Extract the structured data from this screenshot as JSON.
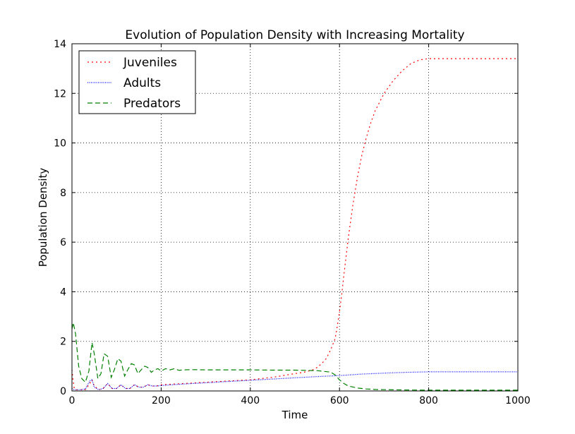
{
  "chart_data": {
    "type": "line",
    "title": "Evolution of Population Density with Increasing Mortality",
    "xlabel": "Time",
    "ylabel": "Population Density",
    "xlim": [
      0,
      1000
    ],
    "ylim": [
      0,
      14
    ],
    "xticks": [
      0,
      200,
      400,
      600,
      800,
      1000
    ],
    "yticks": [
      0,
      2,
      4,
      6,
      8,
      10,
      12,
      14
    ],
    "grid": true,
    "legend_position": "top-left",
    "series": [
      {
        "name": "Juveniles",
        "color": "#ff0000",
        "style": "dotted",
        "x": [
          0,
          2,
          5,
          10,
          15,
          20,
          30,
          40,
          45,
          50,
          60,
          70,
          80,
          90,
          100,
          110,
          120,
          130,
          140,
          150,
          160,
          170,
          180,
          190,
          200,
          250,
          300,
          350,
          400,
          450,
          500,
          520,
          540,
          550,
          560,
          570,
          580,
          590,
          595,
          600,
          605,
          610,
          620,
          630,
          640,
          650,
          660,
          670,
          680,
          700,
          720,
          740,
          760,
          780,
          800,
          820,
          850,
          900,
          950,
          1000
        ],
        "y": [
          0.85,
          0.5,
          0.1,
          0.05,
          0.03,
          0.05,
          0.05,
          0.3,
          0.45,
          0.2,
          0.05,
          0.1,
          0.3,
          0.1,
          0.1,
          0.25,
          0.1,
          0.1,
          0.25,
          0.15,
          0.15,
          0.25,
          0.2,
          0.2,
          0.25,
          0.3,
          0.35,
          0.4,
          0.45,
          0.55,
          0.7,
          0.75,
          0.85,
          0.95,
          1.1,
          1.3,
          1.65,
          2.1,
          2.6,
          3.2,
          3.9,
          4.7,
          6.2,
          7.5,
          8.6,
          9.5,
          10.2,
          10.8,
          11.3,
          12.0,
          12.5,
          12.9,
          13.2,
          13.35,
          13.4,
          13.4,
          13.4,
          13.4,
          13.4,
          13.4
        ]
      },
      {
        "name": "Adults",
        "color": "#0000ff",
        "style": "dotted-fine",
        "x": [
          0,
          5,
          10,
          20,
          30,
          40,
          45,
          50,
          60,
          70,
          80,
          90,
          100,
          110,
          120,
          130,
          140,
          150,
          160,
          170,
          180,
          190,
          200,
          250,
          300,
          350,
          400,
          450,
          500,
          550,
          600,
          650,
          700,
          750,
          800,
          850,
          900,
          950,
          1000
        ],
        "y": [
          0.1,
          0.05,
          0.05,
          0.05,
          0.08,
          0.4,
          0.45,
          0.15,
          0.05,
          0.1,
          0.3,
          0.1,
          0.1,
          0.25,
          0.1,
          0.1,
          0.25,
          0.15,
          0.15,
          0.25,
          0.2,
          0.2,
          0.22,
          0.28,
          0.33,
          0.38,
          0.43,
          0.48,
          0.53,
          0.58,
          0.62,
          0.68,
          0.72,
          0.75,
          0.77,
          0.77,
          0.77,
          0.77,
          0.77
        ]
      },
      {
        "name": "Predators",
        "color": "#008000",
        "style": "dashed",
        "x": [
          0,
          3,
          8,
          15,
          22,
          30,
          38,
          45,
          50,
          58,
          65,
          72,
          80,
          88,
          95,
          103,
          110,
          118,
          125,
          133,
          140,
          148,
          155,
          163,
          170,
          178,
          185,
          193,
          200,
          210,
          220,
          230,
          240,
          250,
          270,
          300,
          350,
          400,
          450,
          500,
          550,
          580,
          590,
          600,
          610,
          620,
          640,
          660,
          680,
          700,
          750,
          800,
          850,
          900,
          950,
          1000
        ],
        "y": [
          2.5,
          2.75,
          2.3,
          1.0,
          0.5,
          0.35,
          0.8,
          1.95,
          1.5,
          0.5,
          0.7,
          1.5,
          1.4,
          0.55,
          0.85,
          1.3,
          1.2,
          0.6,
          0.85,
          1.1,
          1.05,
          0.7,
          0.85,
          1.0,
          0.95,
          0.75,
          0.85,
          0.9,
          0.8,
          0.9,
          0.85,
          0.9,
          0.83,
          0.85,
          0.86,
          0.85,
          0.85,
          0.85,
          0.84,
          0.84,
          0.82,
          0.76,
          0.65,
          0.45,
          0.3,
          0.2,
          0.12,
          0.08,
          0.06,
          0.05,
          0.04,
          0.03,
          0.03,
          0.03,
          0.03,
          0.03
        ]
      }
    ]
  }
}
